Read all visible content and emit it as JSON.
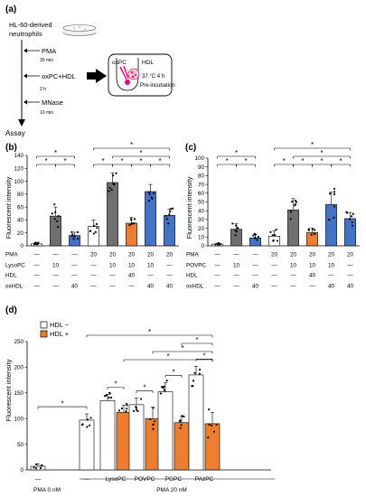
{
  "panel_a": {
    "panel_label": "(a)",
    "cells_label": "HL-60-derived",
    "cells_label2": "neutrophils",
    "step1": "PMA",
    "time1": "30 min",
    "step2": "oxPC+HDL",
    "time2": "2 h",
    "step3": "MNase",
    "time3": "10 min",
    "assay": "Assay",
    "oxpc": "oxPC",
    "hdl": "HDL",
    "preinc_temp": "37 °C 4 h",
    "preinc_label": "Pre-incubation"
  },
  "chart_data": [
    {
      "panel": "(b)",
      "type": "bar",
      "ylabel": "Fluorescent intensity",
      "ylim": [
        0,
        140
      ],
      "yticks": [
        0,
        20,
        40,
        60,
        80,
        100,
        120,
        140
      ],
      "row_labels": [
        "PMA",
        "LysoPC",
        "HDL",
        "oxHDL"
      ],
      "columns": [
        {
          "cells": [
            "—",
            "—",
            "—",
            "—"
          ],
          "value": 3,
          "err": 1.5,
          "color": "white"
        },
        {
          "cells": [
            "—",
            "10",
            "—",
            "—"
          ],
          "value": 46,
          "err": 14,
          "color": "gray"
        },
        {
          "cells": [
            "—",
            "—",
            "—",
            "40"
          ],
          "value": 16,
          "err": 5,
          "color": "blue"
        },
        {
          "cells": [
            "20",
            "—",
            "—",
            "—"
          ],
          "value": 30,
          "err": 10,
          "color": "white"
        },
        {
          "cells": [
            "20",
            "10",
            "—",
            "—"
          ],
          "value": 98,
          "err": 15,
          "color": "gray"
        },
        {
          "cells": [
            "20",
            "10",
            "40",
            "—"
          ],
          "value": 35,
          "err": 9,
          "color": "orange"
        },
        {
          "cells": [
            "20",
            "10",
            "—",
            "40"
          ],
          "value": 84,
          "err": 11,
          "color": "blue"
        },
        {
          "cells": [
            "20",
            "—",
            "—",
            "40"
          ],
          "value": 47,
          "err": 10,
          "color": "blue"
        }
      ],
      "significance": [
        {
          "from": 0,
          "to": 1,
          "level": 0,
          "label": "*"
        },
        {
          "from": 0,
          "to": 2,
          "level": 1,
          "label": "*"
        },
        {
          "from": 1,
          "to": 2,
          "level": 0,
          "label": "*"
        },
        {
          "from": 3,
          "to": 4,
          "level": 0,
          "label": "*"
        },
        {
          "from": 4,
          "to": 5,
          "level": 0,
          "label": "*"
        },
        {
          "from": 5,
          "to": 6,
          "level": 0,
          "label": "*"
        },
        {
          "from": 6,
          "to": 7,
          "level": 0,
          "label": "*"
        },
        {
          "from": 4,
          "to": 7,
          "level": 1,
          "label": "*"
        },
        {
          "from": 3,
          "to": 7,
          "level": 2,
          "label": "*"
        }
      ]
    },
    {
      "panel": "(c)",
      "type": "bar",
      "ylabel": "Fluorescent intensity",
      "ylim": [
        0,
        100
      ],
      "yticks": [
        0,
        10,
        20,
        30,
        40,
        50,
        60,
        70,
        80,
        90,
        100
      ],
      "row_labels": [
        "PMA",
        "POVPC",
        "HDL",
        "oxHDL"
      ],
      "columns": [
        {
          "cells": [
            "—",
            "—",
            "—",
            "—"
          ],
          "value": 2,
          "err": 1,
          "color": "white"
        },
        {
          "cells": [
            "—",
            "10",
            "—",
            "—"
          ],
          "value": 19,
          "err": 6,
          "color": "gray"
        },
        {
          "cells": [
            "—",
            "—",
            "—",
            "40"
          ],
          "value": 9,
          "err": 4,
          "color": "blue"
        },
        {
          "cells": [
            "20",
            "—",
            "—",
            "—"
          ],
          "value": 11,
          "err": 6,
          "color": "white"
        },
        {
          "cells": [
            "20",
            "10",
            "—",
            "—"
          ],
          "value": 41,
          "err": 13,
          "color": "gray"
        },
        {
          "cells": [
            "20",
            "10",
            "40",
            "—"
          ],
          "value": 15,
          "err": 5,
          "color": "orange"
        },
        {
          "cells": [
            "20",
            "10",
            "—",
            "40"
          ],
          "value": 47,
          "err": 14,
          "color": "blue"
        },
        {
          "cells": [
            "20",
            "—",
            "—",
            "40"
          ],
          "value": 31,
          "err": 7,
          "color": "blue"
        }
      ],
      "significance": [
        {
          "from": 0,
          "to": 1,
          "level": 0,
          "label": "*"
        },
        {
          "from": 1,
          "to": 2,
          "level": 0,
          "label": "*"
        },
        {
          "from": 0,
          "to": 2,
          "level": 1,
          "label": "*"
        },
        {
          "from": 3,
          "to": 4,
          "level": 0,
          "label": "*"
        },
        {
          "from": 4,
          "to": 5,
          "level": 0,
          "label": "*"
        },
        {
          "from": 5,
          "to": 6,
          "level": 0,
          "label": "*"
        },
        {
          "from": 6,
          "to": 7,
          "level": 0,
          "label": "*"
        },
        {
          "from": 4,
          "to": 7,
          "level": 1,
          "label": "*"
        },
        {
          "from": 3,
          "to": 7,
          "level": 2,
          "label": "*"
        }
      ]
    },
    {
      "panel": "(d)",
      "type": "bar",
      "ylabel": "Fluorescent intensity",
      "ylim": [
        0,
        250
      ],
      "yticks": [
        0,
        50,
        100,
        150,
        200,
        250
      ],
      "legend": [
        {
          "name": "HDL −",
          "color": "white"
        },
        {
          "name": "HDL +",
          "color": "orange"
        }
      ],
      "groups": [
        {
          "label": "—",
          "bars": [
            {
              "value": 7,
              "err": 5,
              "color": "white"
            }
          ]
        },
        {
          "label": "—",
          "bars": [
            {
              "value": 97,
              "err": 12,
              "color": "white"
            }
          ]
        },
        {
          "label": "LysoPC",
          "bars": [
            {
              "value": 135,
              "err": 12,
              "color": "white"
            },
            {
              "value": 112,
              "err": 14,
              "color": "orange"
            }
          ]
        },
        {
          "label": "POVPC",
          "bars": [
            {
              "value": 127,
              "err": 13,
              "color": "white"
            },
            {
              "value": 100,
              "err": 22,
              "color": "orange"
            }
          ]
        },
        {
          "label": "PGPC",
          "bars": [
            {
              "value": 152,
              "err": 18,
              "color": "white"
            },
            {
              "value": 92,
              "err": 12,
              "color": "orange"
            }
          ]
        },
        {
          "label": "PAzPC",
          "bars": [
            {
              "value": 185,
              "err": 17,
              "color": "white"
            },
            {
              "value": 90,
              "err": 22,
              "color": "orange"
            }
          ]
        }
      ],
      "bottom_labels": [
        "PMA 0 nM",
        "PMA 20 nM"
      ],
      "significance": [
        {
          "from": 0,
          "to": 1,
          "level": 0,
          "label": "*"
        },
        {
          "from": 2,
          "to": 3,
          "level": 0,
          "label": "*"
        },
        {
          "from": 4,
          "to": 5,
          "level": 0,
          "label": "*"
        },
        {
          "from": 6,
          "to": 7,
          "level": 0,
          "label": "*"
        },
        {
          "from": 8,
          "to": 9,
          "level": 0,
          "label": "*"
        },
        {
          "from": 2,
          "to": 8,
          "level": 1,
          "label": "*"
        },
        {
          "from": 2,
          "to": 8,
          "level": 2,
          "label": "*"
        },
        {
          "from": 2,
          "to": 8,
          "level": 3,
          "label": "*"
        },
        {
          "from": 2,
          "to": 8,
          "level": 4,
          "label": "*"
        }
      ]
    }
  ],
  "colors": {
    "white": "#ffffff",
    "gray": "#6f6f6f",
    "blue": "#4472c4",
    "orange": "#ed7d31",
    "pink": "#e5007e",
    "flask": "#c9b8a4"
  }
}
